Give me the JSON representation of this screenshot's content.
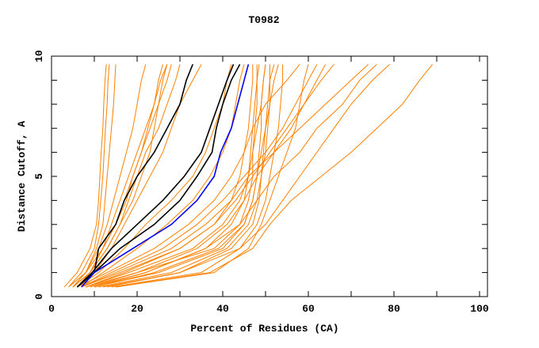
{
  "chart_data": {
    "type": "line",
    "title": "T0982",
    "xlabel": "Percent of Residues (CA)",
    "ylabel": "Distance Cutoff, A",
    "xlim": [
      0,
      100
    ],
    "ylim": [
      0,
      10
    ],
    "xticks": [
      0,
      20,
      40,
      60,
      80,
      100
    ],
    "yticks": [
      0,
      5,
      10
    ],
    "grid": false,
    "cutoffs": [
      0.4,
      1,
      2,
      3,
      4,
      5,
      6,
      7,
      8,
      9,
      9.66
    ],
    "colors": {
      "other": "#ff8000",
      "highlight_black": "#000000",
      "highlight_blue": "#0000ff"
    },
    "series_other": [
      [
        4,
        7,
        10,
        11,
        11.5,
        12,
        12.3,
        12.6,
        13,
        13.2,
        13.5
      ],
      [
        3,
        6,
        9,
        10.5,
        11,
        11.3,
        11.6,
        12,
        12.2,
        12.5,
        12.8
      ],
      [
        5,
        8,
        10.5,
        12,
        12.5,
        13,
        13.5,
        14,
        14.5,
        14.8,
        15
      ],
      [
        5,
        8,
        11,
        13,
        14.5,
        16,
        17.5,
        19,
        20,
        21,
        22
      ],
      [
        5,
        9,
        12,
        14,
        16,
        18,
        20,
        22,
        24,
        25,
        26
      ],
      [
        6,
        9,
        13,
        16,
        18,
        20,
        22,
        25,
        27,
        29,
        30
      ],
      [
        6,
        10,
        14,
        17,
        20,
        23,
        26,
        28,
        30,
        33,
        35
      ],
      [
        5,
        9,
        13,
        16,
        19,
        21,
        23,
        24,
        25,
        26,
        27
      ],
      [
        6,
        9,
        12,
        15,
        17,
        19,
        21,
        23,
        25,
        27,
        28
      ],
      [
        4,
        8,
        12,
        15,
        17.5,
        19,
        21,
        22.5,
        24,
        25.5,
        27
      ],
      [
        6,
        11,
        17,
        22,
        28,
        33,
        36,
        38,
        40,
        41,
        42
      ],
      [
        7,
        12,
        20,
        27,
        33,
        37,
        40,
        42,
        43,
        44,
        45
      ],
      [
        8,
        20,
        38,
        44,
        46,
        47,
        47,
        47.5,
        48,
        48,
        48
      ],
      [
        10,
        25,
        40,
        45,
        47,
        48,
        48.5,
        49,
        49,
        49.5,
        50
      ],
      [
        12,
        30,
        42,
        47,
        48.5,
        49,
        50,
        50.5,
        51,
        51,
        52
      ],
      [
        9,
        22,
        36,
        42,
        45,
        46,
        46.5,
        47,
        47.5,
        48,
        48.5
      ],
      [
        11,
        28,
        41,
        46,
        48,
        49,
        49.5,
        50,
        50.5,
        51,
        51
      ],
      [
        14,
        35,
        44,
        48,
        50,
        51,
        52,
        53,
        53.5,
        54,
        54
      ],
      [
        7,
        16,
        30,
        38,
        42,
        44,
        45,
        46,
        46.5,
        47,
        47
      ],
      [
        8,
        18,
        33,
        40,
        44,
        46,
        47,
        48,
        49,
        49.5,
        50
      ],
      [
        10,
        24,
        39,
        45,
        47,
        48,
        49,
        50,
        51,
        52,
        53
      ],
      [
        15,
        38,
        46,
        49,
        51,
        53,
        55,
        57,
        58,
        59,
        60
      ],
      [
        9,
        20,
        34,
        41,
        45,
        48,
        52,
        56,
        59,
        62,
        64
      ],
      [
        8,
        17,
        30,
        38,
        43,
        47,
        51,
        55,
        59,
        63,
        66
      ],
      [
        7,
        15,
        28,
        36,
        42,
        46,
        52,
        58,
        64,
        70,
        74
      ],
      [
        10,
        22,
        36,
        44,
        48,
        52,
        58,
        62,
        68,
        72,
        76
      ],
      [
        13,
        30,
        44,
        50,
        54,
        58,
        62,
        66,
        70,
        75,
        79
      ],
      [
        15,
        37,
        47,
        51,
        56,
        63,
        70,
        76,
        82,
        86,
        89
      ],
      [
        6,
        13,
        24,
        32,
        38,
        42,
        45,
        47,
        50,
        55,
        58
      ],
      [
        7,
        14,
        26,
        34,
        40,
        45,
        50,
        54,
        57,
        60,
        62
      ]
    ],
    "series_black": [
      [
        6,
        10,
        11,
        15,
        17,
        20,
        24,
        27,
        30,
        31.5,
        33
      ],
      [
        6,
        9.5,
        14,
        20,
        26,
        31,
        35,
        37,
        39,
        41,
        42.5
      ],
      [
        6,
        10,
        16,
        24,
        30,
        34,
        37.5,
        38.5,
        40,
        42,
        44
      ]
    ],
    "series_blue": [
      [
        7,
        10,
        19,
        28,
        34,
        38,
        39.5,
        42,
        43.5,
        45,
        46
      ]
    ]
  }
}
